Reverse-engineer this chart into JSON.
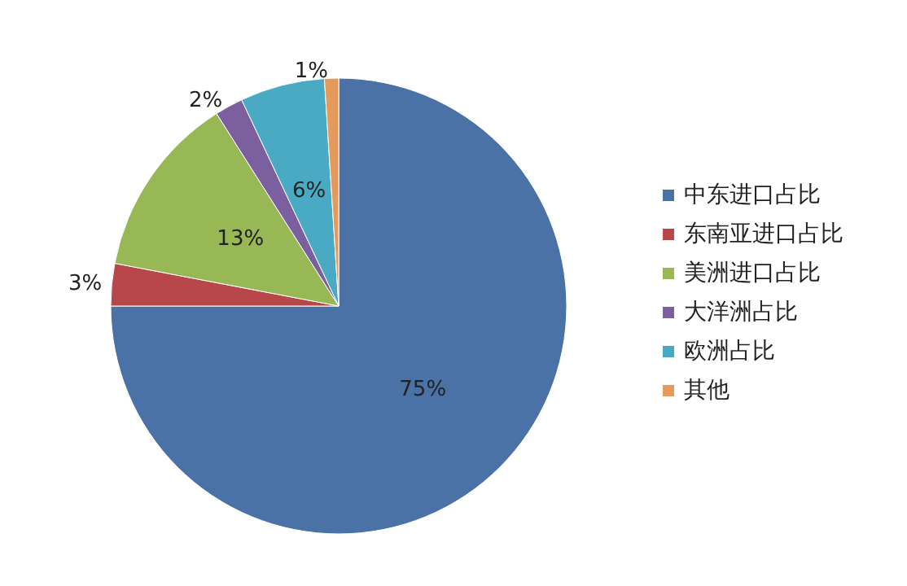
{
  "chart_data": {
    "type": "pie",
    "categories": [
      "中东进口占比",
      "东南亚进口占比",
      "美洲进口占比",
      "大洋洲占比",
      "欧洲占比",
      "其他"
    ],
    "values": [
      75,
      3,
      13,
      2,
      6,
      1
    ],
    "value_labels": [
      "75%",
      "3%",
      "13%",
      "2%",
      "6%",
      "1%"
    ],
    "colors": [
      "#4a72a6",
      "#b8474a",
      "#97b855",
      "#7b5f9e",
      "#4aaac4",
      "#e39a5a"
    ],
    "legend": "right"
  }
}
